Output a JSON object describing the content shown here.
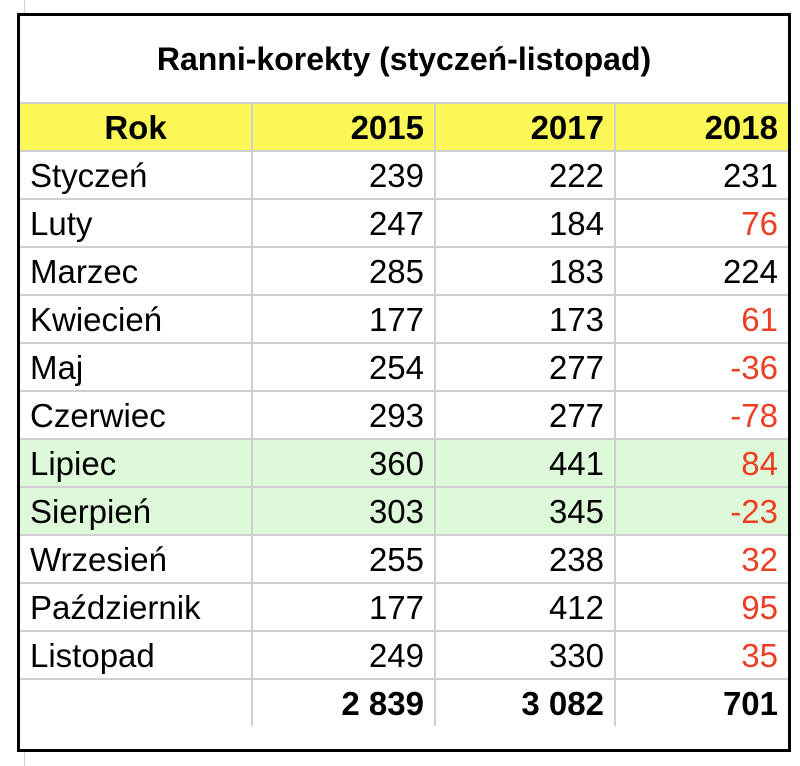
{
  "title": "Ranni-korekty (styczeń-listopad)",
  "header": [
    "Rok",
    "2015",
    "2017",
    "2018"
  ],
  "colors": {
    "header_bg": "#fbf757",
    "highlight_bg": "#ddf9d9",
    "red_text": "#ec3f22"
  },
  "rows": [
    {
      "month": "Styczeń",
      "v2015": "239",
      "v2017": "222",
      "v2018": "231",
      "red": false,
      "highlight": false
    },
    {
      "month": "Luty",
      "v2015": "247",
      "v2017": "184",
      "v2018": "76",
      "red": true,
      "highlight": false
    },
    {
      "month": "Marzec",
      "v2015": "285",
      "v2017": "183",
      "v2018": "224",
      "red": false,
      "highlight": false
    },
    {
      "month": "Kwiecień",
      "v2015": "177",
      "v2017": "173",
      "v2018": "61",
      "red": true,
      "highlight": false
    },
    {
      "month": "Maj",
      "v2015": "254",
      "v2017": "277",
      "v2018": "-36",
      "red": true,
      "highlight": false
    },
    {
      "month": "Czerwiec",
      "v2015": "293",
      "v2017": "277",
      "v2018": "-78",
      "red": true,
      "highlight": false
    },
    {
      "month": "Lipiec",
      "v2015": "360",
      "v2017": "441",
      "v2018": "84",
      "red": true,
      "highlight": true
    },
    {
      "month": "Sierpień",
      "v2015": "303",
      "v2017": "345",
      "v2018": "-23",
      "red": true,
      "highlight": true
    },
    {
      "month": "Wrzesień",
      "v2015": "255",
      "v2017": "238",
      "v2018": "32",
      "red": true,
      "highlight": false
    },
    {
      "month": "Październik",
      "v2015": "177",
      "v2017": "412",
      "v2018": "95",
      "red": true,
      "highlight": false
    },
    {
      "month": "Listopad",
      "v2015": "249",
      "v2017": "330",
      "v2018": "35",
      "red": true,
      "highlight": false
    }
  ],
  "totals": {
    "label": "",
    "v2015": "2 839",
    "v2017": "3 082",
    "v2018": "701"
  }
}
